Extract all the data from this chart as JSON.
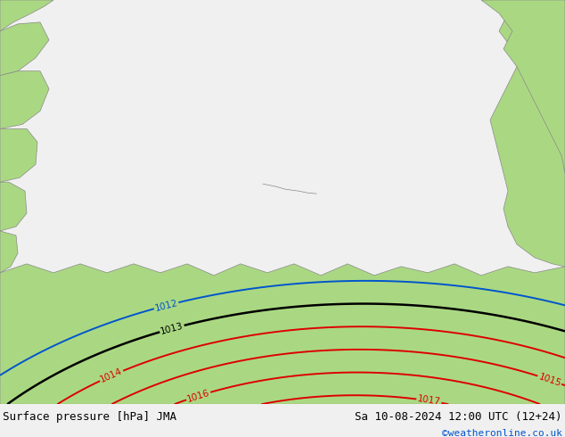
{
  "title_left": "Surface pressure [hPa] JMA",
  "title_right": "Sa 10-08-2024 12:00 UTC (12+24)",
  "credit": "©weatheronline.co.uk",
  "bg_color": "#c8c8c8",
  "land_color": "#aad882",
  "sea_color": "#c8c8c8",
  "fig_width": 6.34,
  "fig_height": 4.9,
  "dpi": 100,
  "bottom_bar_color": "#f0f0f0",
  "contour_red_color": "#dd0000",
  "contour_black_color": "#000000",
  "contour_blue_color": "#0055cc",
  "label_fontsize": 7.5,
  "title_fontsize": 9,
  "credit_fontsize": 8,
  "border_color": "#888888"
}
